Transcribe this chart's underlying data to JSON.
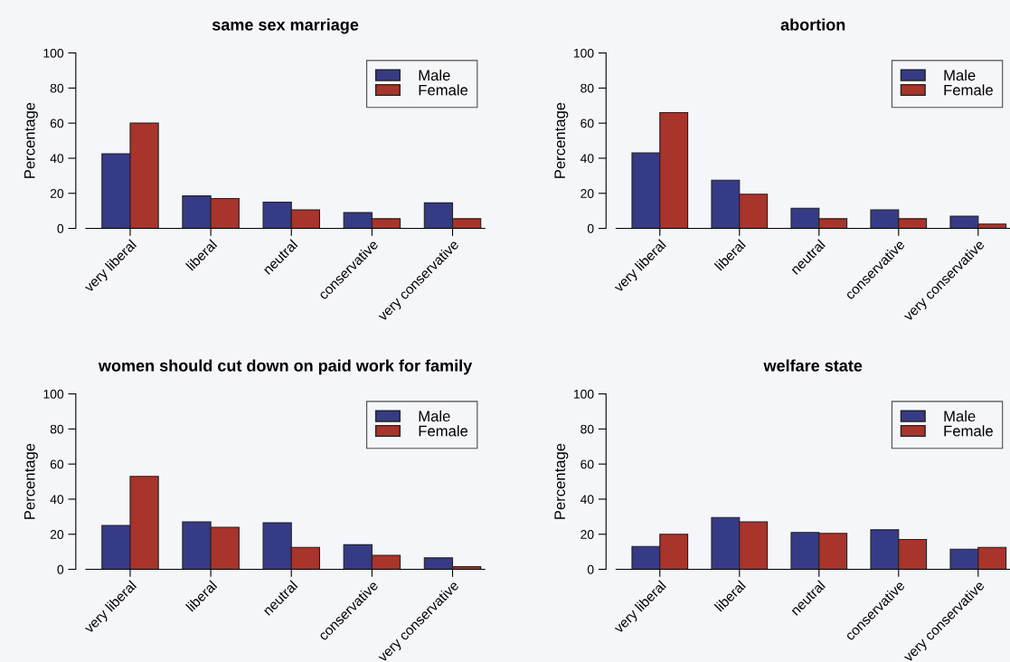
{
  "chart_data": [
    {
      "type": "bar",
      "title": "same sex marriage",
      "ylabel": "Percentage",
      "categories": [
        "very liberal",
        "liberal",
        "neutral",
        "conservative",
        "very conservative"
      ],
      "ylim": [
        0,
        100
      ],
      "yticks": [
        0,
        20,
        40,
        60,
        80,
        100
      ],
      "legend": "top right",
      "grid": false,
      "series": [
        {
          "name": "Male",
          "color": "#363b85",
          "values": [
            42.5,
            18.5,
            15,
            9,
            14.5
          ]
        },
        {
          "name": "Female",
          "color": "#a8342b",
          "values": [
            60,
            17,
            10.5,
            5.5,
            5.5
          ]
        }
      ]
    },
    {
      "type": "bar",
      "title": "abortion",
      "ylabel": "Percentage",
      "categories": [
        "very liberal",
        "liberal",
        "neutral",
        "conservative",
        "very conservative"
      ],
      "ylim": [
        0,
        100
      ],
      "yticks": [
        0,
        20,
        40,
        60,
        80,
        100
      ],
      "legend": "top right",
      "grid": false,
      "series": [
        {
          "name": "Male",
          "color": "#363b85",
          "values": [
            43,
            27.5,
            11.5,
            10.5,
            7
          ]
        },
        {
          "name": "Female",
          "color": "#a8342b",
          "values": [
            66,
            19.5,
            5.5,
            5.5,
            2.5
          ]
        }
      ]
    },
    {
      "type": "bar",
      "title": "women should cut down on paid work for family",
      "ylabel": "Percentage",
      "categories": [
        "very liberal",
        "liberal",
        "neutral",
        "conservative",
        "very conservative"
      ],
      "ylim": [
        0,
        100
      ],
      "yticks": [
        0,
        20,
        40,
        60,
        80,
        100
      ],
      "legend": "top right",
      "grid": false,
      "series": [
        {
          "name": "Male",
          "color": "#363b85",
          "values": [
            25,
            27,
            26.5,
            14,
            6.5
          ]
        },
        {
          "name": "Female",
          "color": "#a8342b",
          "values": [
            53,
            24,
            12.5,
            8,
            1.5
          ]
        }
      ]
    },
    {
      "type": "bar",
      "title": "welfare state",
      "ylabel": "Percentage",
      "categories": [
        "very liberal",
        "liberal",
        "neutral",
        "conservative",
        "very conservative"
      ],
      "ylim": [
        0,
        100
      ],
      "yticks": [
        0,
        20,
        40,
        60,
        80,
        100
      ],
      "legend": "top right",
      "grid": false,
      "series": [
        {
          "name": "Male",
          "color": "#363b85",
          "values": [
            13,
            29.5,
            21,
            22.5,
            11.5
          ]
        },
        {
          "name": "Female",
          "color": "#a8342b",
          "values": [
            20,
            27,
            20.5,
            17,
            12.5
          ]
        }
      ]
    }
  ]
}
